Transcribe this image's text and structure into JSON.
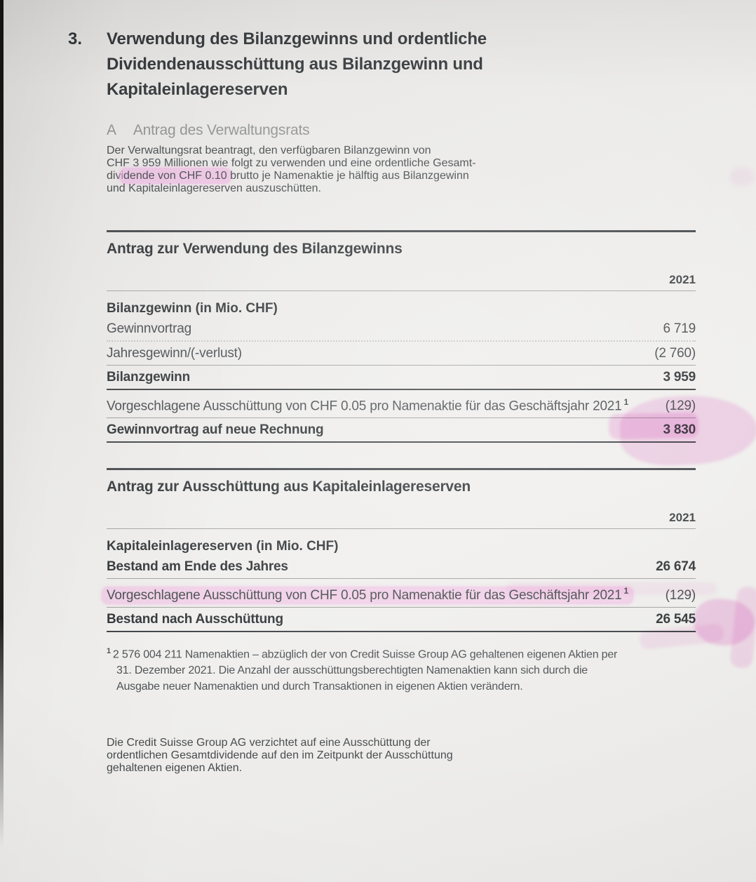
{
  "colors": {
    "highlighter": "#f1a6e1",
    "paper": "#ecebe9",
    "ink": "#33373a"
  },
  "header": {
    "section_number": "3.",
    "title_lines": [
      "Verwendung des Bilanzgewinns und ordentliche",
      "Dividendenausschüttung aus Bilanzgewinn und",
      "Kapitaleinlagereserven"
    ]
  },
  "subsection": {
    "letter": "A",
    "title": "Antrag des Verwaltungsrats"
  },
  "intro": {
    "line1": "Der Verwaltungsrat beantragt, den verfügbaren Bilanzgewinn von",
    "line2": "CHF 3 959 Millionen wie folgt zu verwenden und eine ordentliche Gesamt-",
    "line3_pre": "divi",
    "line3_highlight": "dende von CHF 0.10",
    "line3_post": " brutto je Namenaktie je hälftig aus Bilanzgewinn",
    "line4": "und Kapitaleinlagereserven auszuschütten."
  },
  "table1": {
    "title": "Antrag zur Verwendung des Bilanzgewinns",
    "year": "2021",
    "section_label": "Bilanzgewinn (in Mio. CHF)",
    "rows": [
      {
        "label": "Gewinnvortrag",
        "value": "6 719"
      },
      {
        "label": "Jahresgewinn/(-verlust)",
        "value": "(2 760)"
      },
      {
        "label": "Bilanzgewinn",
        "value": "3 959"
      },
      {
        "label": "Vorgeschlagene Ausschüttung von CHF 0.05 pro Namenaktie für das Geschäftsjahr 2021",
        "footnote_ref": "1",
        "value": "(129)"
      },
      {
        "label": "Gewinnvortrag auf neue Rechnung",
        "value": "3 830"
      }
    ]
  },
  "table2": {
    "title": "Antrag zur Ausschüttung aus Kapitaleinlagereserven",
    "year": "2021",
    "section_label": "Kapitaleinlagereserven (in Mio. CHF)",
    "rows": [
      {
        "label": "Bestand am Ende des Jahres",
        "value": "26 674"
      },
      {
        "label": "Vorgeschlagene Ausschüttung von CHF 0.05 pro Namenaktie für das Geschäftsjahr 2021",
        "footnote_ref": "1",
        "value": "(129)"
      },
      {
        "label": "Bestand nach Ausschüttung",
        "value": "26 545"
      }
    ]
  },
  "footnote": {
    "marker": "1",
    "lines": [
      "2 576 004 211 Namenaktien – abzüglich der von Credit Suisse Group AG gehaltenen eigenen Aktien per",
      "31. Dezember 2021. Die Anzahl der ausschüttungsberechtigten Namenaktien kann sich durch die",
      "Ausgabe neuer Namenaktien und durch Transaktionen in eigenen Aktien verändern."
    ]
  },
  "closing": {
    "lines": [
      "Die Credit Suisse Group AG verzichtet auf eine Ausschüttung der",
      "ordentlichen Gesamtdividende auf den im Zeitpunkt der Ausschüttung",
      "gehaltenen eigenen Aktien."
    ]
  }
}
